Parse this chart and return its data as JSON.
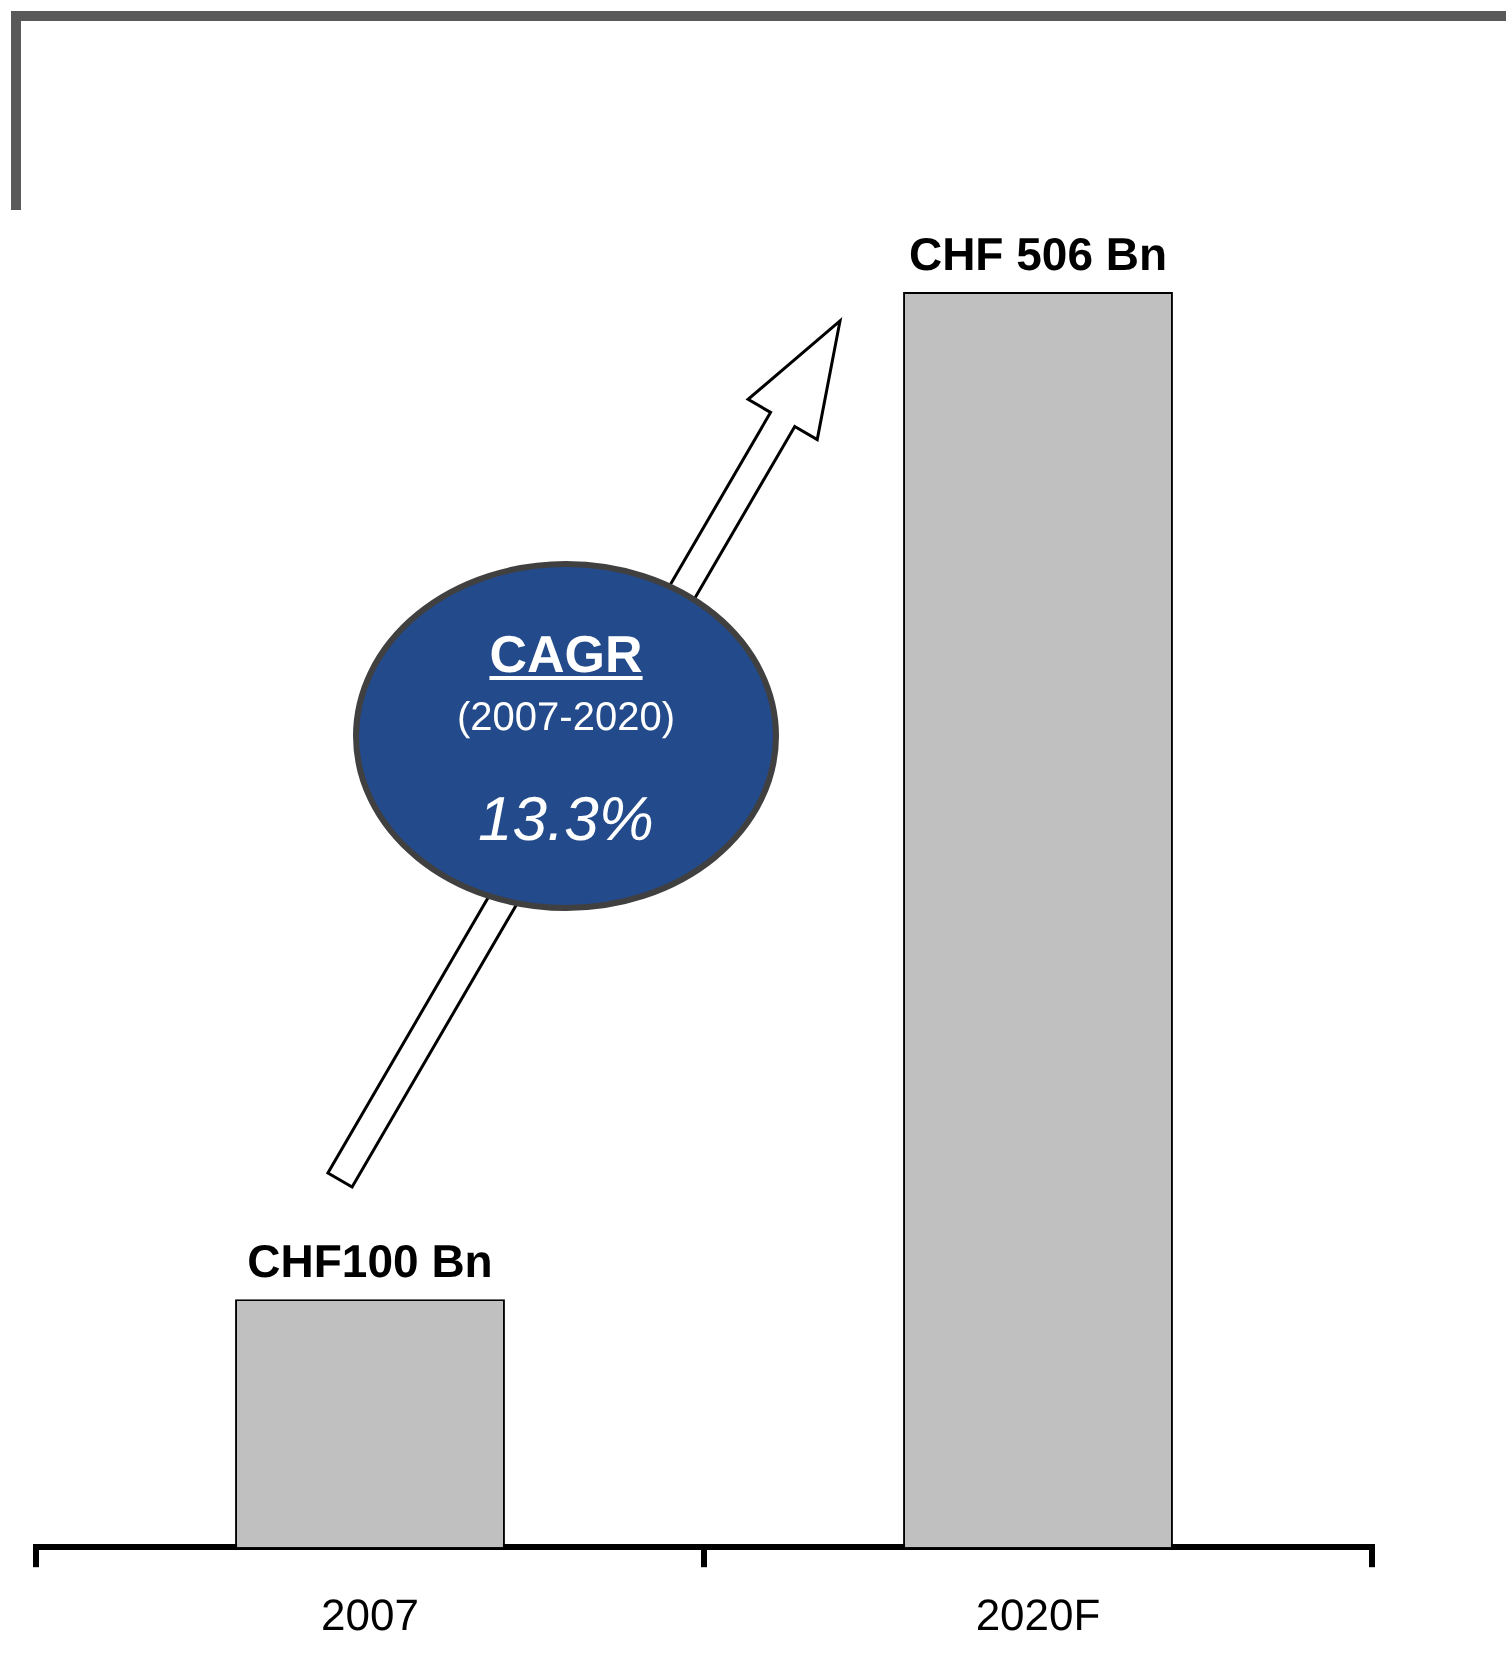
{
  "chart_data": {
    "type": "bar",
    "categories": [
      "2007",
      "2020F"
    ],
    "values": [
      100,
      506
    ],
    "color": "#c0c0c0",
    "value_labels": [
      "CHF100 Bn",
      "CHF 506 Bn"
    ],
    "tick_labels": "x",
    "annotations": [
      "CAGR",
      "(2007-2020)",
      "13.3%"
    ]
  }
}
